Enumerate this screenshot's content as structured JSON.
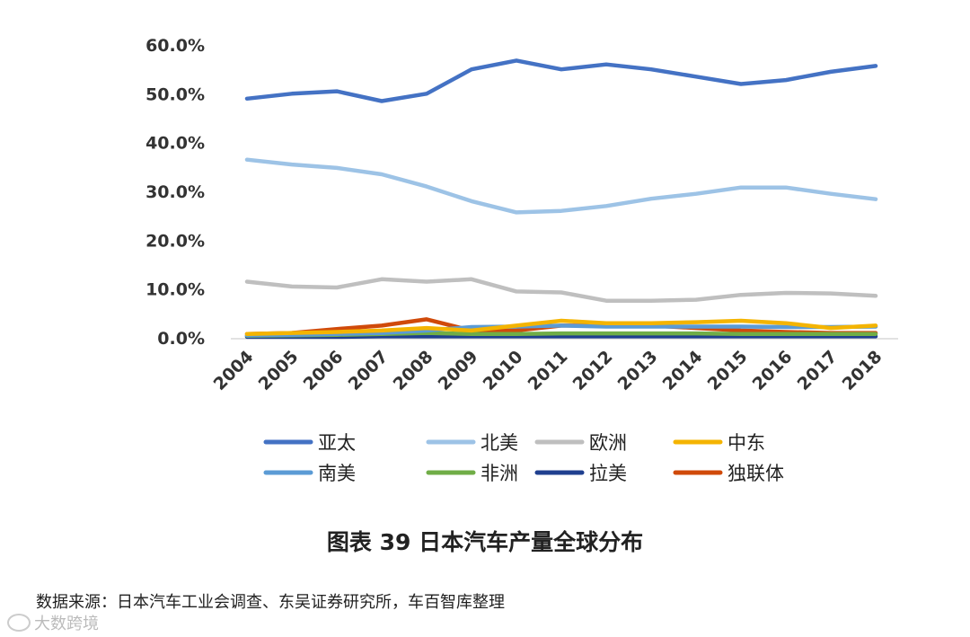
{
  "chart_data": {
    "type": "line",
    "title": "图表 39 日本汽车产量全球分布",
    "x": [
      "2004",
      "2005",
      "2006",
      "2007",
      "2008",
      "2009",
      "2010",
      "2011",
      "2012",
      "2013",
      "2014",
      "2015",
      "2016",
      "2017",
      "2018"
    ],
    "ylim": [
      0,
      60
    ],
    "yticks": [
      "0.0%",
      "10.0%",
      "20.0%",
      "30.0%",
      "40.0%",
      "50.0%",
      "60.0%"
    ],
    "ytick_values": [
      0,
      10,
      20,
      30,
      40,
      50,
      60
    ],
    "grid": false,
    "legend_position": "bottom",
    "series": [
      {
        "name": "亚太",
        "color": "#4472c4",
        "values": [
          49.0,
          50.0,
          50.5,
          48.5,
          50.0,
          55.0,
          56.8,
          55.0,
          56.0,
          55.0,
          53.5,
          52.0,
          52.8,
          54.5,
          55.7
        ]
      },
      {
        "name": "北美",
        "color": "#9dc3e6",
        "values": [
          36.5,
          35.5,
          34.8,
          33.5,
          31.0,
          28.0,
          25.7,
          26.0,
          27.0,
          28.5,
          29.5,
          30.8,
          30.8,
          29.5,
          28.4
        ]
      },
      {
        "name": "欧洲",
        "color": "#bfbfbf",
        "values": [
          11.5,
          10.5,
          10.3,
          12.0,
          11.5,
          12.0,
          9.5,
          9.3,
          7.6,
          7.6,
          7.8,
          8.8,
          9.2,
          9.1,
          8.6
        ]
      },
      {
        "name": "中东",
        "color": "#f4b400",
        "values": [
          0.8,
          1.0,
          1.2,
          1.5,
          2.0,
          1.5,
          2.5,
          3.5,
          3.0,
          3.0,
          3.2,
          3.5,
          3.0,
          2.0,
          2.5
        ]
      },
      {
        "name": "南美",
        "color": "#5b9bd5",
        "values": [
          0.5,
          0.6,
          0.8,
          1.0,
          1.5,
          2.2,
          2.3,
          2.5,
          2.3,
          2.3,
          2.3,
          2.3,
          2.2,
          2.2,
          2.3
        ]
      },
      {
        "name": "非洲",
        "color": "#70ad47",
        "values": [
          0.4,
          0.5,
          0.6,
          0.8,
          1.0,
          0.8,
          0.8,
          0.9,
          0.9,
          0.9,
          0.9,
          0.8,
          0.8,
          0.8,
          0.8
        ]
      },
      {
        "name": "拉美",
        "color": "#1f3f8f",
        "values": [
          0.2,
          0.2,
          0.2,
          0.3,
          0.3,
          0.3,
          0.3,
          0.3,
          0.3,
          0.3,
          0.3,
          0.3,
          0.3,
          0.3,
          0.3
        ]
      },
      {
        "name": "独联体",
        "color": "#d04a0a",
        "values": [
          0.8,
          1.0,
          1.8,
          2.5,
          3.8,
          1.5,
          1.5,
          2.5,
          2.5,
          2.5,
          2.0,
          1.5,
          1.2,
          1.0,
          1.0
        ]
      }
    ]
  },
  "caption": "图表 39 日本汽车产量全球分布",
  "source": "数据来源：日本汽车工业会调查、东吴证券研究所，车百智库整理",
  "watermark": "大数跨境"
}
